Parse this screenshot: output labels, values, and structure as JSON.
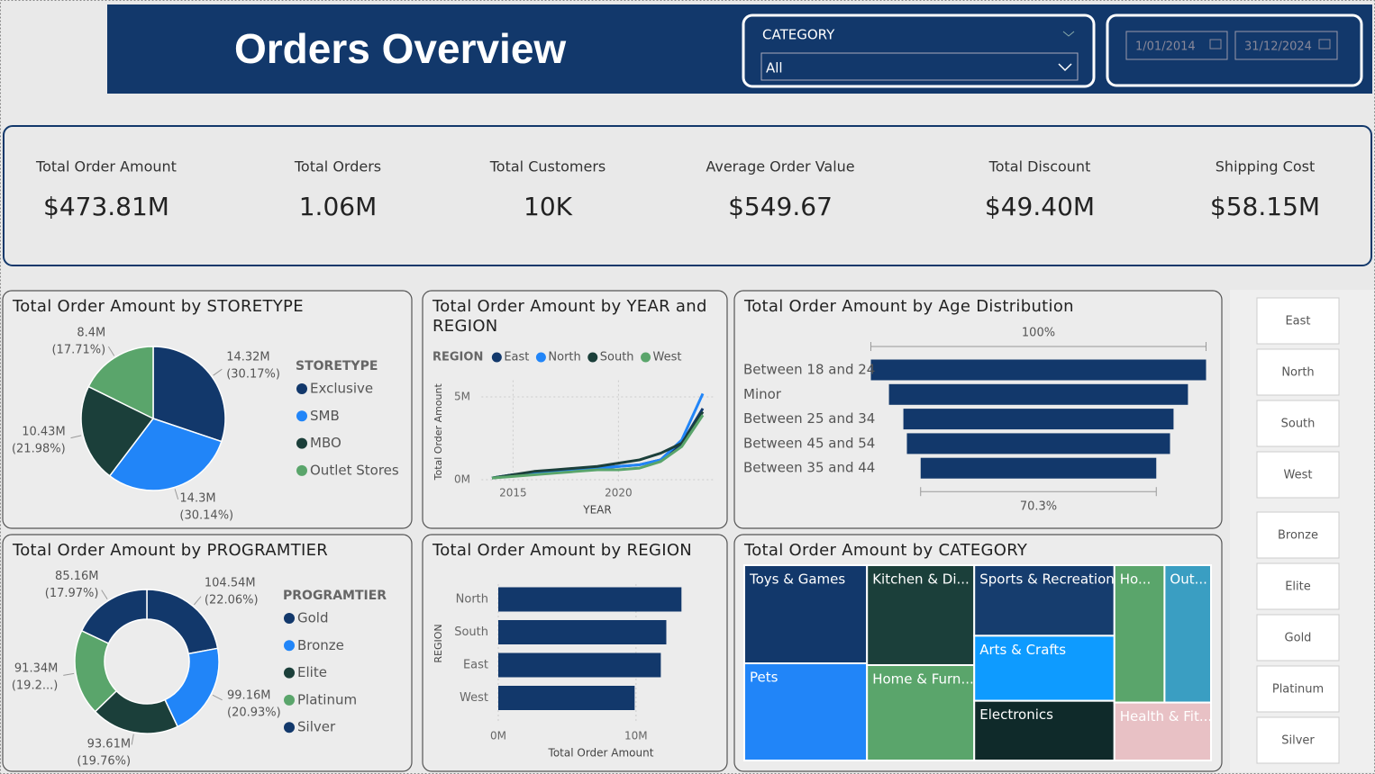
{
  "header": {
    "title": "Orders Overview",
    "category_filter": {
      "label": "CATEGORY",
      "value": "All"
    },
    "date_range": {
      "start": "1/01/2014",
      "end": "31/12/2024"
    }
  },
  "kpis": [
    {
      "label": "Total Order Amount",
      "value": "$473.81M"
    },
    {
      "label": "Total Orders",
      "value": "1.06M"
    },
    {
      "label": "Total Customers",
      "value": "10K"
    },
    {
      "label": "Average Order Value",
      "value": "$549.67"
    },
    {
      "label": "Total Discount",
      "value": "$49.40M"
    },
    {
      "label": "Shipping Cost",
      "value": "$58.15M"
    }
  ],
  "chart_data": [
    {
      "type": "pie",
      "title": "Total Order Amount by STORETYPE",
      "legend_title": "STORETYPE",
      "categories": [
        "Exclusive",
        "SMB",
        "MBO",
        "Outlet Stores"
      ],
      "values": [
        14.32,
        14.3,
        10.43,
        8.4
      ],
      "value_labels": [
        "14.32M (30.17%)",
        "14.3M (30.14%)",
        "10.43M (21.98%)",
        "8.4M (17.71%)"
      ],
      "colors": [
        "#12386b",
        "#2185f8",
        "#1b3f3a",
        "#5aa56b"
      ]
    },
    {
      "type": "line",
      "title": "Total Order Amount by YEAR and REGION",
      "legend_title": "REGION",
      "x_label": "YEAR",
      "y_label": "Total Order Amount",
      "x": [
        2014,
        2015,
        2016,
        2017,
        2018,
        2019,
        2020,
        2021,
        2022,
        2023,
        2024
      ],
      "series": [
        {
          "name": "East",
          "color": "#12386b",
          "values": [
            0.1,
            0.3,
            0.4,
            0.5,
            0.6,
            0.7,
            0.8,
            0.9,
            1.2,
            2.2,
            4.3
          ]
        },
        {
          "name": "North",
          "color": "#2185f8",
          "values": [
            0.1,
            0.3,
            0.4,
            0.5,
            0.6,
            0.7,
            0.8,
            0.9,
            1.2,
            2.4,
            5.2
          ]
        },
        {
          "name": "South",
          "color": "#1b3f3a",
          "values": [
            0.1,
            0.3,
            0.5,
            0.6,
            0.7,
            0.8,
            1.0,
            1.2,
            1.6,
            2.2,
            4.1
          ]
        },
        {
          "name": "West",
          "color": "#5aa56b",
          "values": [
            0.1,
            0.2,
            0.3,
            0.4,
            0.5,
            0.6,
            0.6,
            0.7,
            1.1,
            2.0,
            3.9
          ]
        }
      ],
      "xlim": [
        2013.5,
        2024.5
      ],
      "xticks": [
        2015,
        2020
      ],
      "ylim": [
        0,
        6
      ],
      "yticks": [
        {
          "value": 0,
          "label": "0M"
        },
        {
          "value": 5,
          "label": "5M"
        }
      ],
      "grid": true
    },
    {
      "type": "funnel",
      "title": "Total Order Amount by Age Distribution",
      "categories": [
        "Between 18 and 24",
        "Minor",
        "Between 25 and 34",
        "Between 45 and 54",
        "Between 35 and 44"
      ],
      "values": [
        100,
        89.2,
        80.6,
        78.5,
        70.3
      ],
      "value_labels": [
        "100%",
        null,
        null,
        null,
        "70.3%"
      ],
      "color": "#12386b"
    },
    {
      "type": "donut",
      "title": "Total Order Amount by PROGRAMTIER",
      "legend_title": "PROGRAMTIER",
      "categories": [
        "Gold",
        "Bronze",
        "Elite",
        "Platinum",
        "Silver"
      ],
      "values": [
        104.54,
        99.16,
        93.61,
        91.34,
        85.16
      ],
      "value_labels": [
        "104.54M (22.06%)",
        "99.16M (20.93%)",
        "93.61M (19.76%)",
        "91.34M (19.2...)",
        "85.16M (17.97%)"
      ],
      "colors": [
        "#12386b",
        "#2185f8",
        "#1b3f3a",
        "#5aa56b",
        "#12386b"
      ]
    },
    {
      "type": "bar",
      "orientation": "horizontal",
      "title": "Total Order Amount by REGION",
      "x_label": "Total Order Amount",
      "y_label": "REGION",
      "categories": [
        "North",
        "South",
        "East",
        "West"
      ],
      "values": [
        13.3,
        12.2,
        11.8,
        9.9
      ],
      "xlim": [
        0,
        14
      ],
      "xticks": [
        {
          "value": 0,
          "label": "0M"
        },
        {
          "value": 10,
          "label": "10M"
        }
      ],
      "color": "#12386b",
      "grid": true
    },
    {
      "type": "treemap",
      "title": "Total Order Amount by CATEGORY",
      "categories": [
        "Toys & Games",
        "Pets",
        "Kitchen & Di...",
        "Home & Furn...",
        "Sports & Recreation",
        "Arts & Crafts",
        "Electronics",
        "Ho...",
        "Out...",
        "Health & Fit..."
      ],
      "values": [
        62.6,
        62.0,
        55.7,
        53.2,
        51.4,
        47.4,
        43.5,
        35.8,
        33.2,
        29.1
      ],
      "colors": [
        "#12386b",
        "#2185f8",
        "#1b3f3a",
        "#5aa56b",
        "#163d6e",
        "#0e9bff",
        "#0f2a2a",
        "#5aa56b",
        "#3a9ec2",
        "#e8c1c5"
      ]
    }
  ],
  "slicers": {
    "region": [
      "East",
      "North",
      "South",
      "West"
    ],
    "programtier": [
      "Bronze",
      "Elite",
      "Gold",
      "Platinum",
      "Silver"
    ]
  }
}
